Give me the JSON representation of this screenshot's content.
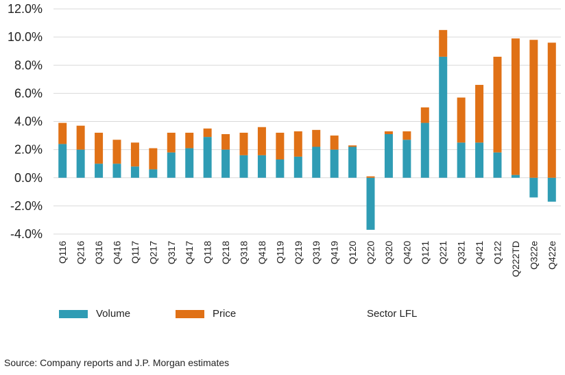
{
  "chart_data": {
    "type": "bar",
    "stacked": true,
    "categories": [
      "Q116",
      "Q216",
      "Q316",
      "Q416",
      "Q117",
      "Q217",
      "Q317",
      "Q417",
      "Q118",
      "Q218",
      "Q318",
      "Q418",
      "Q119",
      "Q219",
      "Q319",
      "Q419",
      "Q120",
      "Q220",
      "Q320",
      "Q420",
      "Q121",
      "Q221",
      "Q321",
      "Q421",
      "Q122",
      "Q222TD",
      "Q322e",
      "Q422e"
    ],
    "series": [
      {
        "name": "Volume",
        "color": "#2f9cb4",
        "values": [
          2.4,
          2.0,
          1.0,
          1.0,
          0.8,
          0.6,
          1.8,
          2.1,
          2.9,
          2.0,
          1.6,
          1.6,
          1.3,
          1.5,
          2.2,
          2.0,
          2.2,
          -3.7,
          3.1,
          2.7,
          3.9,
          8.6,
          2.5,
          2.5,
          1.8,
          0.2,
          -1.4,
          -1.7
        ]
      },
      {
        "name": "Price",
        "color": "#e07116",
        "values": [
          1.5,
          1.7,
          2.2,
          1.7,
          1.7,
          1.5,
          1.4,
          1.1,
          0.6,
          1.1,
          1.6,
          2.0,
          1.9,
          1.8,
          1.2,
          1.0,
          0.1,
          0.1,
          0.2,
          0.6,
          1.1,
          1.9,
          3.2,
          4.1,
          6.8,
          9.7,
          9.8,
          9.6
        ]
      }
    ],
    "ylim": [
      -4.0,
      12.0
    ],
    "yticks": [
      "-4.0%",
      "-2.0%",
      "0.0%",
      "2.0%",
      "4.0%",
      "6.0%",
      "8.0%",
      "10.0%",
      "12.0%"
    ],
    "grid": true,
    "legend": [
      "Volume",
      "Price",
      "Sector LFL"
    ],
    "legend_position": "bottom"
  },
  "source": "Source: Company reports and J.P. Morgan estimates"
}
